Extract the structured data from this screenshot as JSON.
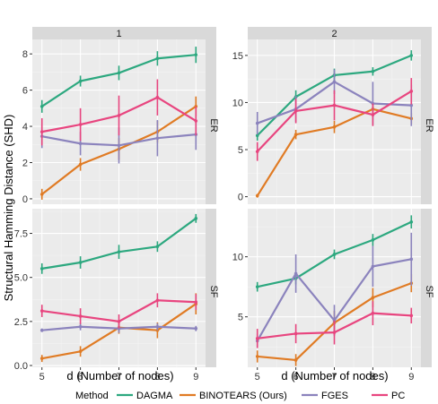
{
  "chart_data": {
    "type": "line",
    "ylabel": "Structural Hamming Distance (SHD)",
    "xlabel": "d (Number of nodes)",
    "x": [
      5,
      6,
      7,
      8,
      9
    ],
    "col_facets": [
      "1",
      "2"
    ],
    "row_facets": [
      "ER",
      "SF"
    ],
    "legend_title": "Method",
    "legend_position": "bottom",
    "grid": true,
    "methods": [
      {
        "name": "DAGMA",
        "color": "#2CA87F"
      },
      {
        "name": "BINOTEARS (Ours)",
        "color": "#E07B24"
      },
      {
        "name": "FGES",
        "color": "#8B83BD"
      },
      {
        "name": "PC",
        "color": "#E8457F"
      }
    ],
    "panels": [
      {
        "col": "1",
        "row": "ER",
        "ylim": [
          -0.3,
          8.8
        ],
        "yticks": [
          0,
          2,
          4,
          6,
          8
        ],
        "ytick_labels": [
          "0",
          "2",
          "4",
          "6",
          "8"
        ],
        "series": [
          {
            "name": "DAGMA",
            "values": [
              5.1,
              6.5,
              6.95,
              7.75,
              7.95
            ],
            "err": [
              0.35,
              0.3,
              0.4,
              0.4,
              0.45
            ]
          },
          {
            "name": "BINOTEARS (Ours)",
            "values": [
              0.25,
              1.9,
              2.75,
              3.7,
              5.1
            ],
            "err": [
              0.3,
              0.35,
              0.6,
              0.6,
              0.55
            ]
          },
          {
            "name": "FGES",
            "values": [
              3.45,
              3.05,
              2.95,
              3.35,
              3.55
            ],
            "err": [
              0.65,
              0.65,
              1.0,
              1.0,
              0.85
            ]
          },
          {
            "name": "PC",
            "values": [
              3.7,
              4.1,
              4.6,
              5.6,
              4.3
            ],
            "err": [
              0.75,
              0.9,
              1.1,
              1.0,
              0.8
            ]
          }
        ]
      },
      {
        "col": "2",
        "row": "ER",
        "ylim": [
          -0.8,
          16.7
        ],
        "yticks": [
          0,
          5,
          10,
          15
        ],
        "ytick_labels": [
          "0",
          "5",
          "10",
          "15"
        ],
        "series": [
          {
            "name": "DAGMA",
            "values": [
              6.5,
              10.6,
              12.9,
              13.3,
              15.0
            ],
            "err": [
              0.55,
              0.7,
              0.7,
              0.45,
              0.55
            ]
          },
          {
            "name": "BINOTEARS (Ours)",
            "values": [
              0.1,
              6.6,
              7.4,
              9.3,
              8.3
            ],
            "err": [
              0.2,
              0.5,
              0.65,
              0.6,
              0.55
            ]
          },
          {
            "name": "FGES",
            "values": [
              7.8,
              9.3,
              12.2,
              9.9,
              9.7
            ],
            "err": [
              1.2,
              1.4,
              1.3,
              2.3,
              2.2
            ]
          },
          {
            "name": "PC",
            "values": [
              4.8,
              9.1,
              9.7,
              8.7,
              11.2
            ],
            "err": [
              1.0,
              1.3,
              1.6,
              1.2,
              1.4
            ]
          }
        ]
      },
      {
        "col": "1",
        "row": "SF",
        "ylim": [
          -0.1,
          8.9
        ],
        "yticks": [
          0,
          2.5,
          5,
          7.5
        ],
        "ytick_labels": [
          "0.0",
          "2.5",
          "5.0",
          "7.5"
        ],
        "series": [
          {
            "name": "DAGMA",
            "values": [
              5.5,
              5.85,
              6.45,
              6.75,
              8.35
            ],
            "err": [
              0.3,
              0.35,
              0.4,
              0.3,
              0.25
            ]
          },
          {
            "name": "BINOTEARS (Ours)",
            "values": [
              0.4,
              0.8,
              2.15,
              2.0,
              3.5
            ],
            "err": [
              0.2,
              0.3,
              0.35,
              0.45,
              0.6
            ]
          },
          {
            "name": "FGES",
            "values": [
              2.0,
              2.2,
              2.1,
              2.2,
              2.1
            ],
            "err": [
              0.1,
              0.2,
              0.25,
              0.2,
              0.15
            ]
          },
          {
            "name": "PC",
            "values": [
              3.1,
              2.8,
              2.5,
              3.7,
              3.6
            ],
            "err": [
              0.35,
              0.45,
              0.4,
              0.4,
              0.45
            ]
          }
        ]
      },
      {
        "col": "2",
        "row": "SF",
        "ylim": [
          0.8,
          14.0
        ],
        "yticks": [
          5,
          10
        ],
        "ytick_labels": [
          "5",
          "10"
        ],
        "series": [
          {
            "name": "DAGMA",
            "values": [
              7.5,
              8.2,
              10.2,
              11.4,
              12.9
            ],
            "err": [
              0.4,
              0.5,
              0.4,
              0.5,
              0.55
            ]
          },
          {
            "name": "BINOTEARS (Ours)",
            "values": [
              1.7,
              1.4,
              4.5,
              6.6,
              7.8
            ],
            "err": [
              0.5,
              0.5,
              1.0,
              0.8,
              0.75
            ]
          },
          {
            "name": "FGES",
            "values": [
              3.0,
              8.6,
              4.7,
              9.2,
              9.8
            ],
            "err": [
              0.6,
              1.6,
              1.3,
              1.7,
              2.2
            ]
          },
          {
            "name": "PC",
            "values": [
              3.2,
              3.6,
              3.7,
              5.3,
              5.1
            ],
            "err": [
              0.8,
              0.8,
              1.0,
              1.0,
              0.65
            ]
          }
        ]
      }
    ]
  }
}
